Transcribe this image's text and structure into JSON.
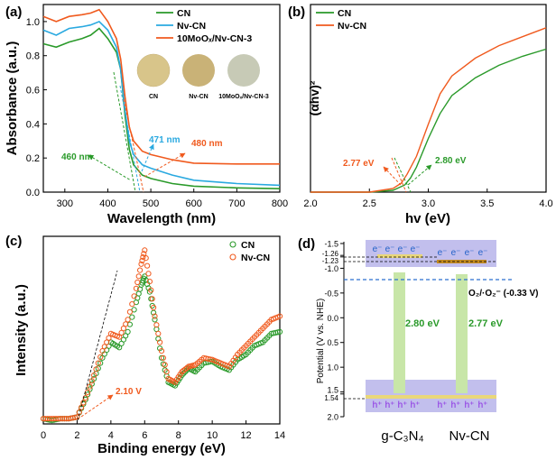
{
  "colors": {
    "cn": "#2a9a2a",
    "nv": "#f05a1e",
    "moo": "#2aa9e0",
    "band_bg": "#b7b4ea",
    "band_edge": "#e9d77a",
    "bridge": "#c8e6a8",
    "dashed_blue": "#2a6fd1",
    "hplus": "#8a2be2",
    "eminus": "#2563c9"
  },
  "chart_data": [
    {
      "panel": "(a)",
      "type": "line",
      "xlabel": "Wavelength (nm)",
      "ylabel": "Absorbance (a.u.)",
      "xlim": [
        250,
        800
      ],
      "ylim": [
        0,
        1.1
      ],
      "xticks": [
        "300",
        "400",
        "500",
        "600",
        "700",
        "800"
      ],
      "yticks": [
        "0.0",
        "0.2",
        "0.4",
        "0.6",
        "0.8",
        "1.0"
      ],
      "legend": [
        "CN",
        "Nv-CN",
        "10MoOₓ/Nv-CN-3"
      ],
      "series": [
        {
          "name": "CN",
          "x": [
            250,
            280,
            310,
            340,
            360,
            380,
            400,
            420,
            430,
            440,
            450,
            460,
            480,
            500,
            550,
            600,
            700,
            800
          ],
          "y": [
            0.87,
            0.85,
            0.88,
            0.9,
            0.92,
            0.96,
            0.9,
            0.82,
            0.72,
            0.45,
            0.25,
            0.16,
            0.1,
            0.08,
            0.05,
            0.035,
            0.025,
            0.02
          ]
        },
        {
          "name": "Nv-CN",
          "x": [
            250,
            280,
            310,
            340,
            360,
            380,
            400,
            420,
            430,
            440,
            450,
            460,
            480,
            500,
            550,
            600,
            700,
            800
          ],
          "y": [
            0.95,
            0.92,
            0.96,
            0.97,
            0.98,
            1.0,
            0.95,
            0.85,
            0.72,
            0.48,
            0.3,
            0.22,
            0.16,
            0.14,
            0.1,
            0.07,
            0.05,
            0.04
          ]
        },
        {
          "name": "10MoOₓ/Nv-CN-3",
          "x": [
            250,
            280,
            310,
            340,
            360,
            380,
            400,
            420,
            430,
            440,
            450,
            460,
            480,
            500,
            550,
            600,
            700,
            800
          ],
          "y": [
            1.03,
            1.0,
            1.03,
            1.04,
            1.05,
            1.07,
            1.0,
            0.9,
            0.78,
            0.56,
            0.38,
            0.3,
            0.24,
            0.22,
            0.19,
            0.17,
            0.165,
            0.165
          ]
        }
      ],
      "annotations": [
        "460 nm",
        "471 nm",
        "480 nm"
      ],
      "photos": [
        "CN",
        "Nv-CN",
        "10MoOₓ/Nv-CN-3"
      ]
    },
    {
      "panel": "(b)",
      "type": "line",
      "xlabel": "hv (eV)",
      "ylabel": "(αhv)²",
      "xlim": [
        2.0,
        4.0
      ],
      "xticks": [
        "2.0",
        "2.5",
        "3.0",
        "3.5",
        "4.0"
      ],
      "ylim": [
        0,
        1.0
      ],
      "legend": [
        "CN",
        "Nv-CN"
      ],
      "series": [
        {
          "name": "CN",
          "x": [
            2.0,
            2.5,
            2.7,
            2.8,
            2.85,
            2.9,
            3.0,
            3.1,
            3.2,
            3.4,
            3.6,
            3.8,
            4.0
          ],
          "y": [
            0.0,
            0.0,
            0.01,
            0.04,
            0.08,
            0.14,
            0.3,
            0.44,
            0.54,
            0.64,
            0.71,
            0.76,
            0.8
          ]
        },
        {
          "name": "Nv-CN",
          "x": [
            2.0,
            2.5,
            2.7,
            2.77,
            2.82,
            2.9,
            3.0,
            3.1,
            3.2,
            3.4,
            3.6,
            3.8,
            4.0
          ],
          "y": [
            0.0,
            0.0,
            0.02,
            0.05,
            0.1,
            0.2,
            0.38,
            0.55,
            0.65,
            0.75,
            0.82,
            0.87,
            0.92
          ]
        }
      ],
      "annotations": [
        "2.77 eV",
        "2.80 eV"
      ]
    },
    {
      "panel": "(c)",
      "type": "scatter",
      "xlabel": "Binding energy (eV)",
      "ylabel": "Intensity (a.u.)",
      "xlim": [
        0,
        14
      ],
      "xticks": [
        "0",
        "2",
        "4",
        "6",
        "8",
        "10",
        "12",
        "14"
      ],
      "ylim": [
        0,
        1.0
      ],
      "legend": [
        "CN",
        "Nv-CN"
      ],
      "series": [
        {
          "name": "CN",
          "x": [
            0,
            0.5,
            1,
            1.5,
            2,
            2.5,
            3,
            3.5,
            4,
            4.5,
            5,
            5.5,
            5.8,
            6,
            6.3,
            6.6,
            7,
            7.4,
            7.8,
            8.2,
            8.6,
            9,
            9.5,
            10,
            10.5,
            11,
            11.5,
            12,
            12.5,
            13,
            13.5,
            14
          ],
          "y": [
            0.03,
            0.02,
            0.03,
            0.03,
            0.04,
            0.14,
            0.26,
            0.38,
            0.47,
            0.44,
            0.53,
            0.7,
            0.8,
            0.85,
            0.76,
            0.6,
            0.38,
            0.24,
            0.22,
            0.28,
            0.32,
            0.3,
            0.35,
            0.36,
            0.33,
            0.31,
            0.37,
            0.4,
            0.45,
            0.47,
            0.52,
            0.53
          ]
        },
        {
          "name": "Nv-CN",
          "x": [
            0,
            0.5,
            1,
            1.5,
            2,
            2.5,
            3,
            3.5,
            4,
            4.5,
            5,
            5.5,
            5.8,
            6,
            6.3,
            6.6,
            7,
            7.4,
            7.8,
            8.2,
            8.6,
            9,
            9.5,
            10,
            10.5,
            11,
            11.5,
            12,
            12.5,
            13,
            13.5,
            14
          ],
          "y": [
            0.03,
            0.03,
            0.03,
            0.03,
            0.04,
            0.15,
            0.28,
            0.42,
            0.52,
            0.5,
            0.6,
            0.78,
            0.92,
            1.0,
            0.82,
            0.62,
            0.42,
            0.26,
            0.24,
            0.3,
            0.33,
            0.34,
            0.38,
            0.37,
            0.35,
            0.33,
            0.4,
            0.45,
            0.5,
            0.55,
            0.6,
            0.62
          ]
        }
      ],
      "annotations": [
        "2.10 V"
      ]
    },
    {
      "panel": "(d)",
      "type": "diagram",
      "ylabel": "Potential (V vs. NHE)",
      "ylim": [
        -1.5,
        2.0
      ],
      "yticks": [
        "-1.5",
        "-1.26",
        "-1.23",
        "-1.0",
        "-0.5",
        "0.0",
        "0.5",
        "1.0",
        "1.5",
        "1.54",
        "2.0"
      ],
      "conduction_band": [
        -1.26,
        -1.23
      ],
      "valence_band": [
        1.54,
        1.54
      ],
      "band_gaps": [
        "2.80 eV",
        "2.77 eV"
      ],
      "redox_label": "O₂/·O₂⁻ (-0.33 V)",
      "redox_value": -0.33,
      "materials": [
        "g-C₃N₄",
        "Nv-CN"
      ],
      "electron": "e⁻",
      "hole": "h⁺"
    }
  ]
}
